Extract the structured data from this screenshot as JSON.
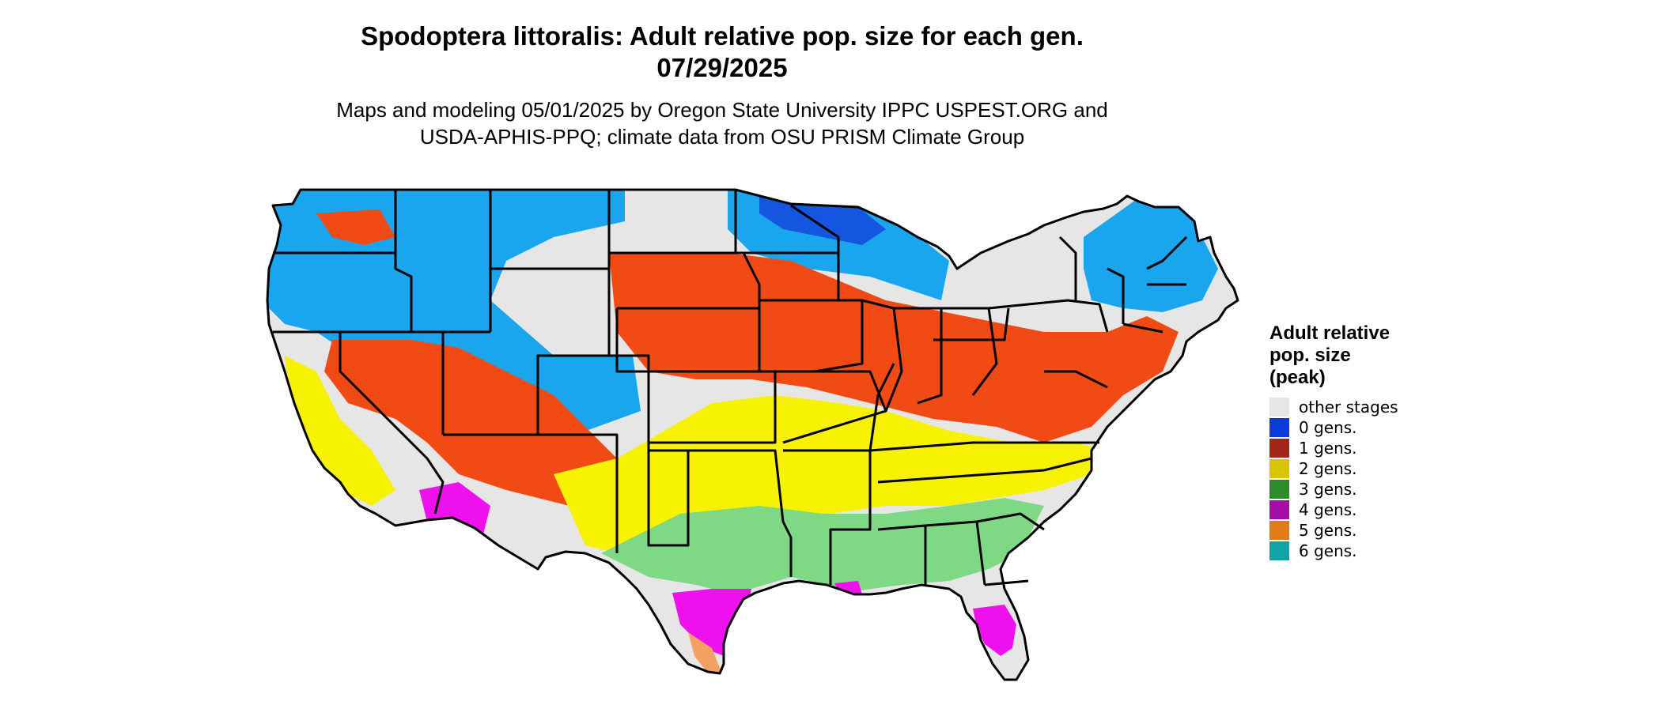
{
  "title": {
    "line1": "Spodoptera littoralis: Adult relative pop. size for each gen.",
    "line2": "07/29/2025"
  },
  "subtitle": {
    "line1": "Maps and modeling 05/01/2025 by Oregon State University IPPC USPEST.ORG and",
    "line2": "USDA-APHIS-PPQ; climate data from OSU PRISM Climate Group"
  },
  "legend": {
    "title_lines": [
      "Adult relative",
      "pop. size",
      "(peak)"
    ],
    "items": [
      {
        "label": "other stages",
        "color": "#e6e6e6"
      },
      {
        "label": "0 gens.",
        "color": "#0a3bdc"
      },
      {
        "label": "1 gens.",
        "color": "#a3261a"
      },
      {
        "label": "2 gens.",
        "color": "#d9c400"
      },
      {
        "label": "3 gens.",
        "color": "#2e8b2e"
      },
      {
        "label": "4 gens.",
        "color": "#a60da6"
      },
      {
        "label": "5 gens.",
        "color": "#e07b15"
      },
      {
        "label": "6 gens.",
        "color": "#11a4a4"
      }
    ]
  },
  "map_colors": {
    "background_land": "#e6e6e6",
    "zone_0_gens": "#1aa6ee",
    "zone_0_gens_dark": "#1556e0",
    "zone_1_gens": "#f24a14",
    "zone_2_gens": "#f6f200",
    "zone_3_gens": "#7ed884",
    "zone_4_gens": "#ee11ee",
    "zone_5_gens": "#f3a063",
    "border": "#000000"
  }
}
